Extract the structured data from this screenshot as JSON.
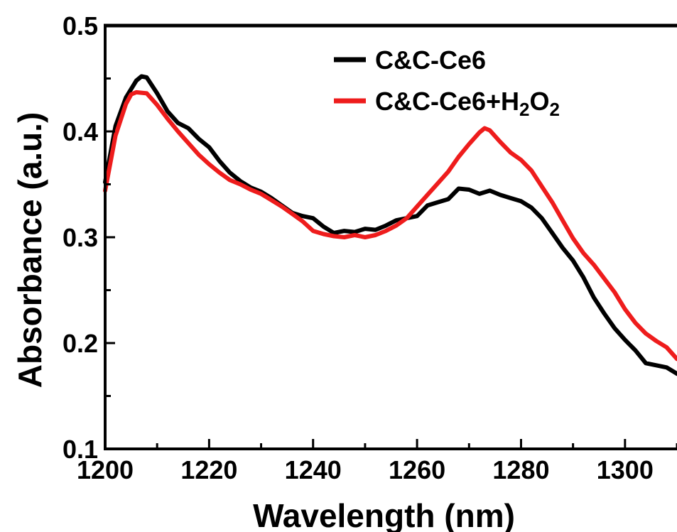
{
  "chart_data": {
    "type": "line",
    "xlabel": "Wavelength (nm)",
    "ylabel": "Absorbance (a.u.)",
    "xlim": [
      1200,
      1310
    ],
    "ylim": [
      0.1,
      0.5
    ],
    "x_ticks": [
      1200,
      1220,
      1240,
      1260,
      1280,
      1300
    ],
    "y_ticks": [
      "0.1",
      "0.2",
      "0.3",
      "0.4",
      "0.5"
    ],
    "grid": false,
    "legend_position": "top-right",
    "series": [
      {
        "name": "C&C-Ce6",
        "legend_main": "C&C-Ce6",
        "legend_sub": "",
        "legend_tail": "",
        "legend_sub2": "",
        "color": "#000000",
        "x": [
          1200,
          1202,
          1204,
          1206,
          1207,
          1208,
          1210,
          1212,
          1214,
          1216,
          1218,
          1220,
          1222,
          1224,
          1226,
          1228,
          1230,
          1232,
          1234,
          1236,
          1238,
          1240,
          1242,
          1244,
          1246,
          1248,
          1250,
          1252,
          1254,
          1256,
          1258,
          1260,
          1262,
          1264,
          1266,
          1268,
          1270,
          1272,
          1274,
          1276,
          1278,
          1280,
          1282,
          1284,
          1286,
          1288,
          1290,
          1292,
          1294,
          1296,
          1298,
          1300,
          1302,
          1304,
          1306,
          1308,
          1310
        ],
        "y": [
          0.352,
          0.405,
          0.432,
          0.448,
          0.452,
          0.451,
          0.436,
          0.419,
          0.408,
          0.403,
          0.393,
          0.385,
          0.372,
          0.361,
          0.353,
          0.347,
          0.343,
          0.337,
          0.33,
          0.323,
          0.32,
          0.318,
          0.31,
          0.304,
          0.306,
          0.305,
          0.308,
          0.307,
          0.311,
          0.316,
          0.318,
          0.32,
          0.33,
          0.333,
          0.336,
          0.346,
          0.345,
          0.341,
          0.344,
          0.34,
          0.337,
          0.334,
          0.328,
          0.318,
          0.304,
          0.29,
          0.278,
          0.262,
          0.243,
          0.228,
          0.214,
          0.203,
          0.193,
          0.181,
          0.179,
          0.177,
          0.171
        ]
      },
      {
        "name": "C&C-Ce6+H2O2",
        "legend_main": "C&C-Ce6+H",
        "legend_sub": "2",
        "legend_tail": "O",
        "legend_sub2": "2",
        "color": "#ee1c1c",
        "x": [
          1200,
          1202,
          1204,
          1205,
          1206,
          1208,
          1210,
          1212,
          1214,
          1216,
          1218,
          1220,
          1222,
          1224,
          1226,
          1228,
          1230,
          1232,
          1234,
          1236,
          1238,
          1240,
          1242,
          1244,
          1246,
          1248,
          1250,
          1252,
          1254,
          1256,
          1258,
          1260,
          1262,
          1264,
          1266,
          1268,
          1270,
          1272,
          1273,
          1274,
          1276,
          1278,
          1280,
          1282,
          1284,
          1286,
          1288,
          1290,
          1292,
          1294,
          1296,
          1298,
          1300,
          1302,
          1304,
          1306,
          1308,
          1310
        ],
        "y": [
          0.344,
          0.396,
          0.426,
          0.435,
          0.437,
          0.436,
          0.425,
          0.412,
          0.4,
          0.389,
          0.378,
          0.369,
          0.361,
          0.354,
          0.35,
          0.345,
          0.341,
          0.335,
          0.329,
          0.322,
          0.315,
          0.306,
          0.303,
          0.301,
          0.3,
          0.302,
          0.3,
          0.302,
          0.306,
          0.311,
          0.318,
          0.329,
          0.34,
          0.351,
          0.362,
          0.376,
          0.388,
          0.399,
          0.403,
          0.401,
          0.39,
          0.38,
          0.373,
          0.363,
          0.348,
          0.333,
          0.316,
          0.299,
          0.285,
          0.274,
          0.261,
          0.248,
          0.232,
          0.219,
          0.209,
          0.202,
          0.196,
          0.185
        ]
      }
    ]
  }
}
